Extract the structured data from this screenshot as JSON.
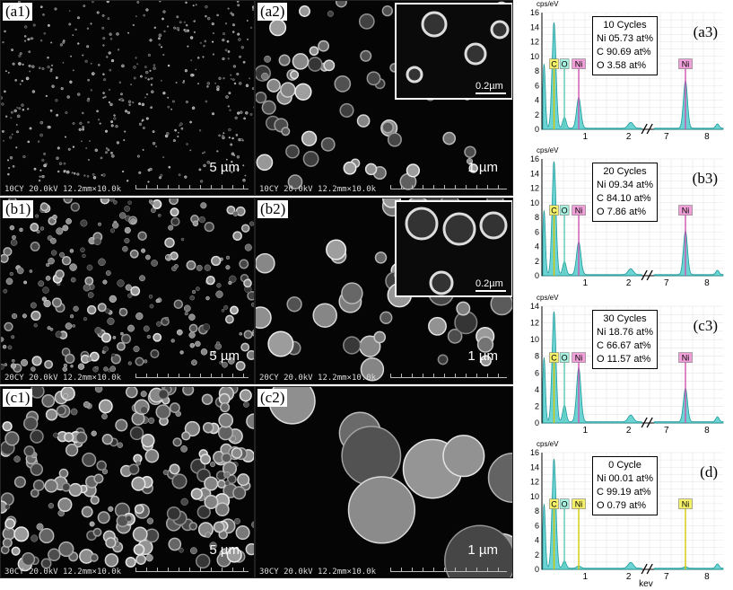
{
  "sem_panels": [
    {
      "id": "a1",
      "label": "(a1)",
      "scale": "5 µm",
      "info": "10CY 20.0kV 12.2mm×10.0k"
    },
    {
      "id": "a2",
      "label": "(a2)",
      "scale": "1 µm",
      "info": "10CY 20.0kV 12.2mm×10.0k",
      "inset_scale": "0.2µm"
    },
    {
      "id": "b1",
      "label": "(b1)",
      "scale": "5 µm",
      "info": "20CY 20.0kV 12.2mm×10.0k"
    },
    {
      "id": "b2",
      "label": "(b2)",
      "scale": "1 µm",
      "info": "20CY 20.0kV 12.2mm×10.0k",
      "inset_scale": "0.2µm"
    },
    {
      "id": "c1",
      "label": "(c1)",
      "scale": "5 µm",
      "info": "30CY 20.0kV 12.2mm×10.0k"
    },
    {
      "id": "c2",
      "label": "(c2)",
      "scale": "1 µm",
      "info": "30CY 20.0kV 12.2mm×10.0k"
    }
  ],
  "eds_panels": [
    {
      "id": "a3",
      "label": "(a3)",
      "cycles": "10 Cycles",
      "ni": "Ni 05.73 at%",
      "c": "C 90.69 at%",
      "o": "O 3.58 at%",
      "ymax": 16,
      "yticks": [
        0,
        2,
        4,
        6,
        8,
        10,
        12,
        14,
        16
      ]
    },
    {
      "id": "b3",
      "label": "(b3)",
      "cycles": "20 Cycles",
      "ni": "Ni 09.34 at%",
      "c": "C 84.10 at%",
      "o": "O 7.86 at%",
      "ymax": 16,
      "yticks": [
        0,
        2,
        4,
        6,
        8,
        10,
        12,
        14,
        16
      ]
    },
    {
      "id": "c3",
      "label": "(c3)",
      "cycles": "30 Cycles",
      "ni": "Ni 18.76 at%",
      "c": "C 66.67 at%",
      "o": "O 11.57 at%",
      "ymax": 14,
      "yticks": [
        0,
        2,
        4,
        6,
        8,
        10,
        12,
        14
      ]
    },
    {
      "id": "d",
      "label": "(d)",
      "cycles": "0 Cycle",
      "ni": "Ni 00.01 at%",
      "c": "C 99.19 at%",
      "o": "O 0.79 at%",
      "ymax": 16,
      "yticks": [
        0,
        2,
        4,
        6,
        8,
        10,
        12,
        14,
        16
      ]
    }
  ],
  "eds_common": {
    "y_unit": "cps/eV",
    "x_unit": "kev",
    "x_ticks": [
      "1",
      "2",
      "7",
      "8"
    ],
    "peaks": {
      "c": "C",
      "o": "O",
      "ni": "Ni"
    },
    "colors": {
      "spectrum": "#3cc6c6",
      "c_tag": "#f5f06a",
      "o_tag": "#a8f0e0",
      "ni_tag": "#f0a0d8",
      "ni_tag_d": "#f5f06a",
      "axis": "#000"
    }
  },
  "chart_data": [
    {
      "type": "area",
      "title": "",
      "xlabel": "",
      "ylabel": "cps/eV",
      "ylim": [
        0,
        16
      ],
      "categories": [
        "C",
        "O",
        "Ni L",
        "Ni K"
      ],
      "series": [
        {
          "name": "",
          "values": [
            14.5,
            1.5,
            4.2,
            6.5
          ]
        }
      ]
    },
    {
      "type": "area",
      "title": "",
      "xlabel": "",
      "ylabel": "cps/eV",
      "ylim": [
        0,
        16
      ],
      "categories": [
        "C",
        "O",
        "Ni L",
        "Ni K"
      ],
      "series": [
        {
          "name": "",
          "values": [
            15.5,
            1.8,
            4.5,
            6.0
          ]
        }
      ]
    },
    {
      "type": "area",
      "title": "",
      "xlabel": "",
      "ylabel": "cps/eV",
      "ylim": [
        0,
        14
      ],
      "categories": [
        "C",
        "O",
        "Ni L",
        "Ni K"
      ],
      "series": [
        {
          "name": "",
          "values": [
            13.2,
            2.0,
            6.5,
            4.0
          ]
        }
      ]
    },
    {
      "type": "area",
      "title": "",
      "xlabel": "",
      "ylabel": "cps/eV",
      "ylim": [
        0,
        16
      ],
      "categories": [
        "C",
        "O",
        "Ni L",
        "Ni K"
      ],
      "series": [
        {
          "name": "",
          "values": [
            15.0,
            1.0,
            0.3,
            0.2
          ]
        }
      ]
    }
  ]
}
